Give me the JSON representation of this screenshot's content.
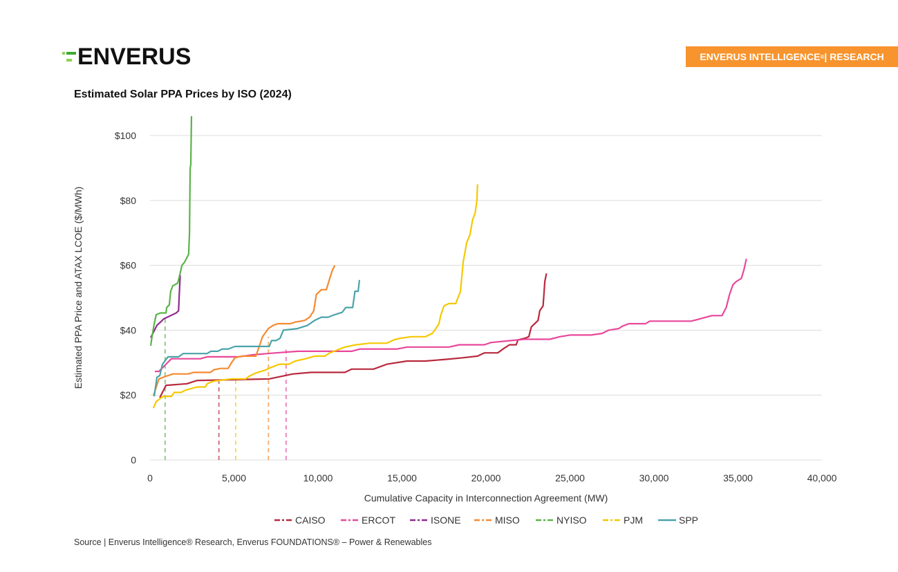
{
  "header": {
    "logo": "ENVERUS",
    "badge": "ENVERUS INTELLIGENCE",
    "badge_sup": "®",
    "badge_suffix": " | RESEARCH"
  },
  "source": "Source | Enverus Intelligence® Research, Enverus FOUNDATIONS® – Power & Renewables",
  "chart_data": {
    "type": "line",
    "title": "Estimated Solar PPA Prices by ISO (2024)",
    "xlabel": "Cumulative Capacity in Interconnection Agreement (MW)",
    "ylabel": "Estimated PPA Price and ATAX LCOE ($/MWh)",
    "xlim": [
      0,
      40000
    ],
    "ylim": [
      0,
      100
    ],
    "x_ticks": [
      0,
      5000,
      10000,
      15000,
      20000,
      25000,
      30000,
      35000,
      40000
    ],
    "x_tick_labels": [
      "0",
      "5,000",
      "10,000",
      "15,000",
      "20,000",
      "25,000",
      "30,000",
      "35,000",
      "40,000"
    ],
    "y_ticks": [
      0,
      20,
      40,
      60,
      80,
      100
    ],
    "y_tick_labels": [
      "0",
      "$20",
      "$40",
      "$60",
      "$80",
      "$100"
    ],
    "grid": "horizontal",
    "legend_position": "bottom",
    "series": [
      {
        "name": "CAISO",
        "color": "#b8283c",
        "marker_x": 4100,
        "marker_y": 25,
        "points": [
          [
            580,
            19.2
          ],
          [
            950,
            23
          ],
          [
            2200,
            23.5
          ],
          [
            2800,
            24.5
          ],
          [
            7100,
            25
          ],
          [
            8500,
            26.5
          ],
          [
            9600,
            27
          ],
          [
            11600,
            27
          ],
          [
            12000,
            28
          ],
          [
            13300,
            28
          ],
          [
            14100,
            29.5
          ],
          [
            15300,
            30.5
          ],
          [
            16400,
            30.5
          ],
          [
            17600,
            31
          ],
          [
            18600,
            31.5
          ],
          [
            19500,
            32
          ],
          [
            19900,
            33
          ],
          [
            20700,
            33
          ],
          [
            21100,
            34.5
          ],
          [
            21400,
            35.5
          ],
          [
            21800,
            35.5
          ],
          [
            21900,
            37
          ],
          [
            22300,
            37.5
          ],
          [
            22550,
            38
          ],
          [
            22700,
            41
          ],
          [
            23100,
            43
          ],
          [
            23200,
            46
          ],
          [
            23400,
            47.5
          ],
          [
            23450,
            51
          ],
          [
            23500,
            55
          ],
          [
            23600,
            57.5
          ]
        ]
      },
      {
        "name": "ERCOT",
        "color": "#e8479a",
        "marker_x": 8100,
        "marker_y": 34,
        "points": [
          [
            290,
            27.3
          ],
          [
            530,
            27.3
          ],
          [
            950,
            29.5
          ],
          [
            1270,
            31.2
          ],
          [
            3000,
            31.2
          ],
          [
            3400,
            31.8
          ],
          [
            5300,
            31.8
          ],
          [
            6100,
            32.4
          ],
          [
            7500,
            33
          ],
          [
            8800,
            33.5
          ],
          [
            12000,
            33.5
          ],
          [
            12500,
            34.2
          ],
          [
            14700,
            34.2
          ],
          [
            15300,
            34.8
          ],
          [
            17800,
            34.8
          ],
          [
            18400,
            35.5
          ],
          [
            19900,
            35.5
          ],
          [
            20300,
            36.2
          ],
          [
            21500,
            36.8
          ],
          [
            22300,
            37.2
          ],
          [
            23800,
            37.2
          ],
          [
            24400,
            38
          ],
          [
            25000,
            38.5
          ],
          [
            26250,
            38.5
          ],
          [
            26900,
            39
          ],
          [
            27300,
            40
          ],
          [
            27900,
            40.5
          ],
          [
            28100,
            41.2
          ],
          [
            28500,
            42
          ],
          [
            29500,
            42
          ],
          [
            29750,
            42.8
          ],
          [
            32200,
            42.8
          ],
          [
            32600,
            43.3
          ],
          [
            33450,
            44.5
          ],
          [
            34050,
            44.5
          ],
          [
            34300,
            47
          ],
          [
            34500,
            51
          ],
          [
            34700,
            54
          ],
          [
            34900,
            55
          ],
          [
            35200,
            56
          ],
          [
            35350,
            58.5
          ],
          [
            35500,
            62
          ]
        ]
      },
      {
        "name": "ISONE",
        "color": "#8e2a8f",
        "marker_x": null,
        "marker_y": null,
        "points": [
          [
            40,
            37.7
          ],
          [
            410,
            41.5
          ],
          [
            620,
            42.5
          ],
          [
            820,
            43.5
          ],
          [
            1150,
            44.3
          ],
          [
            1560,
            45.3
          ],
          [
            1700,
            46
          ],
          [
            1740,
            51
          ],
          [
            1800,
            57
          ]
        ]
      },
      {
        "name": "MISO",
        "color": "#f58a30",
        "marker_x": 7050,
        "marker_y": 38,
        "points": [
          [
            200,
            19.8
          ],
          [
            530,
            25
          ],
          [
            950,
            25.8
          ],
          [
            1360,
            26.5
          ],
          [
            2260,
            26.5
          ],
          [
            2600,
            27
          ],
          [
            3600,
            27
          ],
          [
            3800,
            27.8
          ],
          [
            4200,
            28.2
          ],
          [
            4650,
            28.2
          ],
          [
            4850,
            30
          ],
          [
            5060,
            31.5
          ],
          [
            5470,
            32
          ],
          [
            6300,
            32
          ],
          [
            6500,
            35
          ],
          [
            6700,
            38
          ],
          [
            7040,
            40.5
          ],
          [
            7330,
            41.5
          ],
          [
            7600,
            42
          ],
          [
            8350,
            42
          ],
          [
            8640,
            42.5
          ],
          [
            9200,
            43
          ],
          [
            9500,
            44
          ],
          [
            9750,
            46
          ],
          [
            9900,
            51
          ],
          [
            10200,
            52.5
          ],
          [
            10500,
            52.5
          ],
          [
            10700,
            56
          ],
          [
            10860,
            58.5
          ],
          [
            11000,
            60
          ]
        ]
      },
      {
        "name": "NYISO",
        "color": "#5ab348",
        "marker_x": 900,
        "marker_y": 44,
        "points": [
          [
            40,
            35.2
          ],
          [
            120,
            38
          ],
          [
            250,
            42
          ],
          [
            370,
            44.8
          ],
          [
            620,
            45.3
          ],
          [
            950,
            45.3
          ],
          [
            990,
            47
          ],
          [
            1150,
            47.8
          ],
          [
            1230,
            52
          ],
          [
            1360,
            53.7
          ],
          [
            1650,
            54.5
          ],
          [
            1770,
            57
          ],
          [
            1900,
            60
          ],
          [
            2060,
            61
          ],
          [
            2260,
            63
          ],
          [
            2300,
            63.5
          ],
          [
            2350,
            70
          ],
          [
            2390,
            90
          ],
          [
            2430,
            91
          ],
          [
            2470,
            106
          ]
        ]
      },
      {
        "name": "PJM",
        "color": "#f5c800",
        "marker_x": 5100,
        "marker_y": 25.5,
        "points": [
          [
            200,
            16
          ],
          [
            370,
            18
          ],
          [
            620,
            19
          ],
          [
            780,
            19.6
          ],
          [
            1270,
            19.6
          ],
          [
            1440,
            20.8
          ],
          [
            1850,
            20.8
          ],
          [
            2100,
            21.5
          ],
          [
            2800,
            22.5
          ],
          [
            3300,
            22.5
          ],
          [
            3400,
            23.5
          ],
          [
            3800,
            24.3
          ],
          [
            4850,
            25
          ],
          [
            5700,
            25
          ],
          [
            5900,
            25.8
          ],
          [
            6300,
            26.8
          ],
          [
            6800,
            27.6
          ],
          [
            7200,
            28.5
          ],
          [
            7700,
            29.5
          ],
          [
            8270,
            29.5
          ],
          [
            8640,
            30.5
          ],
          [
            9260,
            31.2
          ],
          [
            9800,
            32
          ],
          [
            10400,
            32
          ],
          [
            10700,
            33
          ],
          [
            11200,
            34
          ],
          [
            11600,
            34.8
          ],
          [
            12260,
            35.5
          ],
          [
            13100,
            36
          ],
          [
            14100,
            36
          ],
          [
            14500,
            37
          ],
          [
            14900,
            37.5
          ],
          [
            15550,
            38
          ],
          [
            16400,
            38
          ],
          [
            16800,
            39
          ],
          [
            16950,
            40
          ],
          [
            17200,
            42
          ],
          [
            17300,
            44.5
          ],
          [
            17500,
            47.5
          ],
          [
            17800,
            48.2
          ],
          [
            18200,
            48.2
          ],
          [
            18330,
            50
          ],
          [
            18480,
            52
          ],
          [
            18640,
            61
          ],
          [
            18850,
            67
          ],
          [
            19050,
            69.5
          ],
          [
            19200,
            74
          ],
          [
            19350,
            76
          ],
          [
            19460,
            80
          ],
          [
            19500,
            85
          ]
        ]
      },
      {
        "name": "SPP",
        "color": "#4aa3a8",
        "marker_x": null,
        "marker_y": null,
        "points": [
          [
            250,
            19.6
          ],
          [
            410,
            25.5
          ],
          [
            580,
            26
          ],
          [
            740,
            29.5
          ],
          [
            1070,
            31.8
          ],
          [
            1700,
            31.8
          ],
          [
            1980,
            32.8
          ],
          [
            3400,
            32.8
          ],
          [
            3620,
            33.5
          ],
          [
            4030,
            33.5
          ],
          [
            4300,
            34.2
          ],
          [
            4650,
            34.2
          ],
          [
            5060,
            35
          ],
          [
            7100,
            35
          ],
          [
            7240,
            36.8
          ],
          [
            7500,
            36.8
          ],
          [
            7740,
            37.5
          ],
          [
            7940,
            40
          ],
          [
            8770,
            40.5
          ],
          [
            9380,
            41.5
          ],
          [
            9800,
            43
          ],
          [
            10200,
            44
          ],
          [
            10600,
            44
          ],
          [
            11000,
            44.8
          ],
          [
            11440,
            45.5
          ],
          [
            11650,
            47
          ],
          [
            12060,
            47
          ],
          [
            12200,
            52
          ],
          [
            12390,
            52
          ],
          [
            12470,
            55.5
          ]
        ]
      }
    ]
  }
}
